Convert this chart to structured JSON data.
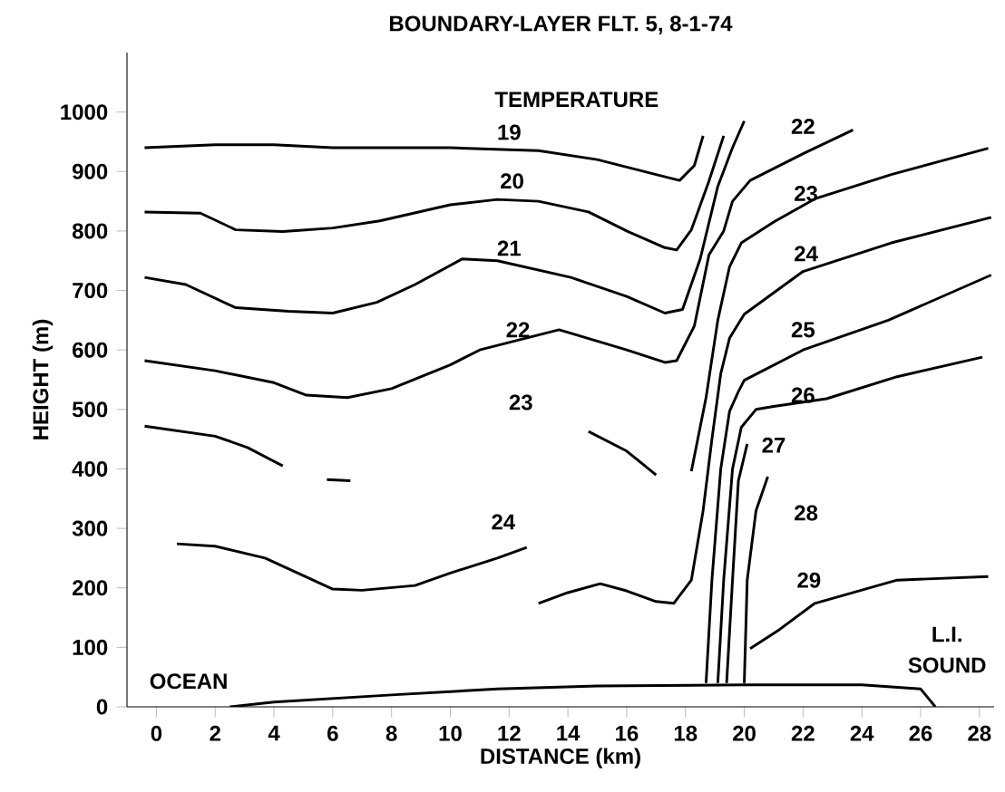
{
  "chart_data": {
    "type": "line",
    "title": "BOUNDARY-LAYER FLT. 5, 8-1-74",
    "xlabel": "DISTANCE (km)",
    "ylabel": "HEIGHT (m)",
    "xlim": [
      -1,
      28.5
    ],
    "ylim": [
      0,
      1100
    ],
    "xticks": [
      0,
      2,
      4,
      6,
      8,
      10,
      12,
      14,
      16,
      18,
      20,
      22,
      24,
      26,
      28
    ],
    "yticks": [
      0,
      100,
      200,
      300,
      400,
      500,
      600,
      700,
      800,
      900,
      1000
    ],
    "grid": false,
    "legend": false,
    "series": [
      {
        "name": "19",
        "color": "#000000",
        "x": [
          -0.4,
          2,
          4,
          6,
          10,
          13,
          15,
          17,
          17.8,
          18.3,
          18.6
        ],
        "values": [
          940,
          945,
          945,
          940,
          940,
          935,
          920,
          895,
          885,
          910,
          960
        ]
      },
      {
        "name": "20",
        "color": "#000000",
        "x": [
          -0.4,
          1.5,
          2.7,
          4.3,
          6,
          7.6,
          10,
          11.6,
          13,
          14.7,
          16,
          17.3,
          17.7,
          18.2,
          18.8,
          19.3
        ],
        "values": [
          832,
          830,
          802,
          799,
          805,
          817,
          844,
          853,
          850,
          832,
          800,
          772,
          768,
          802,
          884,
          960
        ]
      },
      {
        "name": "21",
        "color": "#000000",
        "x": [
          -0.4,
          1,
          2.7,
          4.5,
          6,
          7.5,
          8.8,
          10.4,
          11.6,
          14.1,
          16,
          17.3,
          17.9,
          18.5,
          19.1,
          19.6,
          20.0
        ],
        "values": [
          722,
          710,
          671,
          665,
          662,
          680,
          710,
          753,
          750,
          722,
          690,
          662,
          668,
          753,
          875,
          940,
          985
        ]
      },
      {
        "name": "22",
        "color": "#000000",
        "x": [
          -0.4,
          2,
          4,
          5.1,
          6.5,
          8,
          10,
          11,
          13.7,
          16,
          17.3,
          17.7,
          18.3,
          18.8,
          19.3,
          19.6,
          20.2,
          22,
          23.7
        ],
        "values": [
          582,
          565,
          545,
          524,
          520,
          535,
          575,
          600,
          634,
          600,
          579,
          582,
          640,
          760,
          800,
          850,
          885,
          930,
          970
        ]
      },
      {
        "name": "23",
        "color": "#000000",
        "x": [
          -0.4,
          2,
          3.1,
          4.3,
          null,
          5.8,
          6.6,
          null,
          14.7,
          16,
          17,
          null,
          18.2,
          18.7,
          19.1,
          19.5,
          19.9,
          21,
          22.4,
          25,
          28.3
        ],
        "values": [
          472,
          455,
          436,
          405,
          null,
          382,
          380,
          null,
          463,
          430,
          390,
          null,
          396,
          520,
          650,
          740,
          780,
          815,
          854,
          895,
          939
        ]
      },
      {
        "name": "24",
        "color": "#000000",
        "x": [
          0.7,
          2,
          3.7,
          6,
          7,
          8.8,
          10,
          11.6,
          12.6,
          null,
          13,
          14,
          15.1,
          16,
          17,
          17.6,
          18.2,
          18.6,
          18.9,
          19.2,
          19.5,
          20,
          22,
          25,
          28.4
        ],
        "values": [
          274,
          270,
          250,
          198,
          196,
          204,
          225,
          250,
          268,
          null,
          174,
          192,
          207,
          195,
          177,
          174,
          213,
          330,
          450,
          560,
          620,
          660,
          732,
          780,
          823
        ]
      },
      {
        "name": "25",
        "color": "#000000",
        "x": [
          18.7,
          18.9,
          19.2,
          19.5,
          19.8,
          20,
          22,
          24.9,
          28.4
        ],
        "values": [
          40,
          213,
          400,
          497,
          530,
          549,
          600,
          650,
          726
        ]
      },
      {
        "name": "26",
        "color": "#000000",
        "x": [
          19.1,
          19.3,
          19.6,
          19.9,
          20.4,
          21,
          22.8,
          25.2,
          28.1
        ],
        "values": [
          40,
          213,
          400,
          470,
          500,
          505,
          518,
          555,
          588
        ]
      },
      {
        "name": "27",
        "color": "#000000",
        "x": [
          19.4,
          19.6,
          19.8,
          20.1
        ],
        "values": [
          40,
          213,
          380,
          442
        ]
      },
      {
        "name": "28",
        "color": "#000000",
        "x": [
          20.0,
          20.1,
          20.4,
          20.8
        ],
        "values": [
          40,
          213,
          330,
          387
        ]
      },
      {
        "name": "29",
        "color": "#000000",
        "x": [
          20.2,
          21.2,
          22.4,
          25.2,
          28.3
        ],
        "values": [
          98,
          130,
          174,
          213,
          219
        ]
      },
      {
        "color": "#000000",
        "x": [
          2.5,
          4,
          8,
          11.6,
          15,
          20,
          24,
          26,
          26.5
        ],
        "values": [
          0,
          8,
          20,
          30,
          35,
          37,
          37,
          30,
          0
        ]
      }
    ],
    "annotations": [
      "TEMPERATURE",
      "OCEAN",
      "L.I.",
      "SOUND"
    ]
  }
}
